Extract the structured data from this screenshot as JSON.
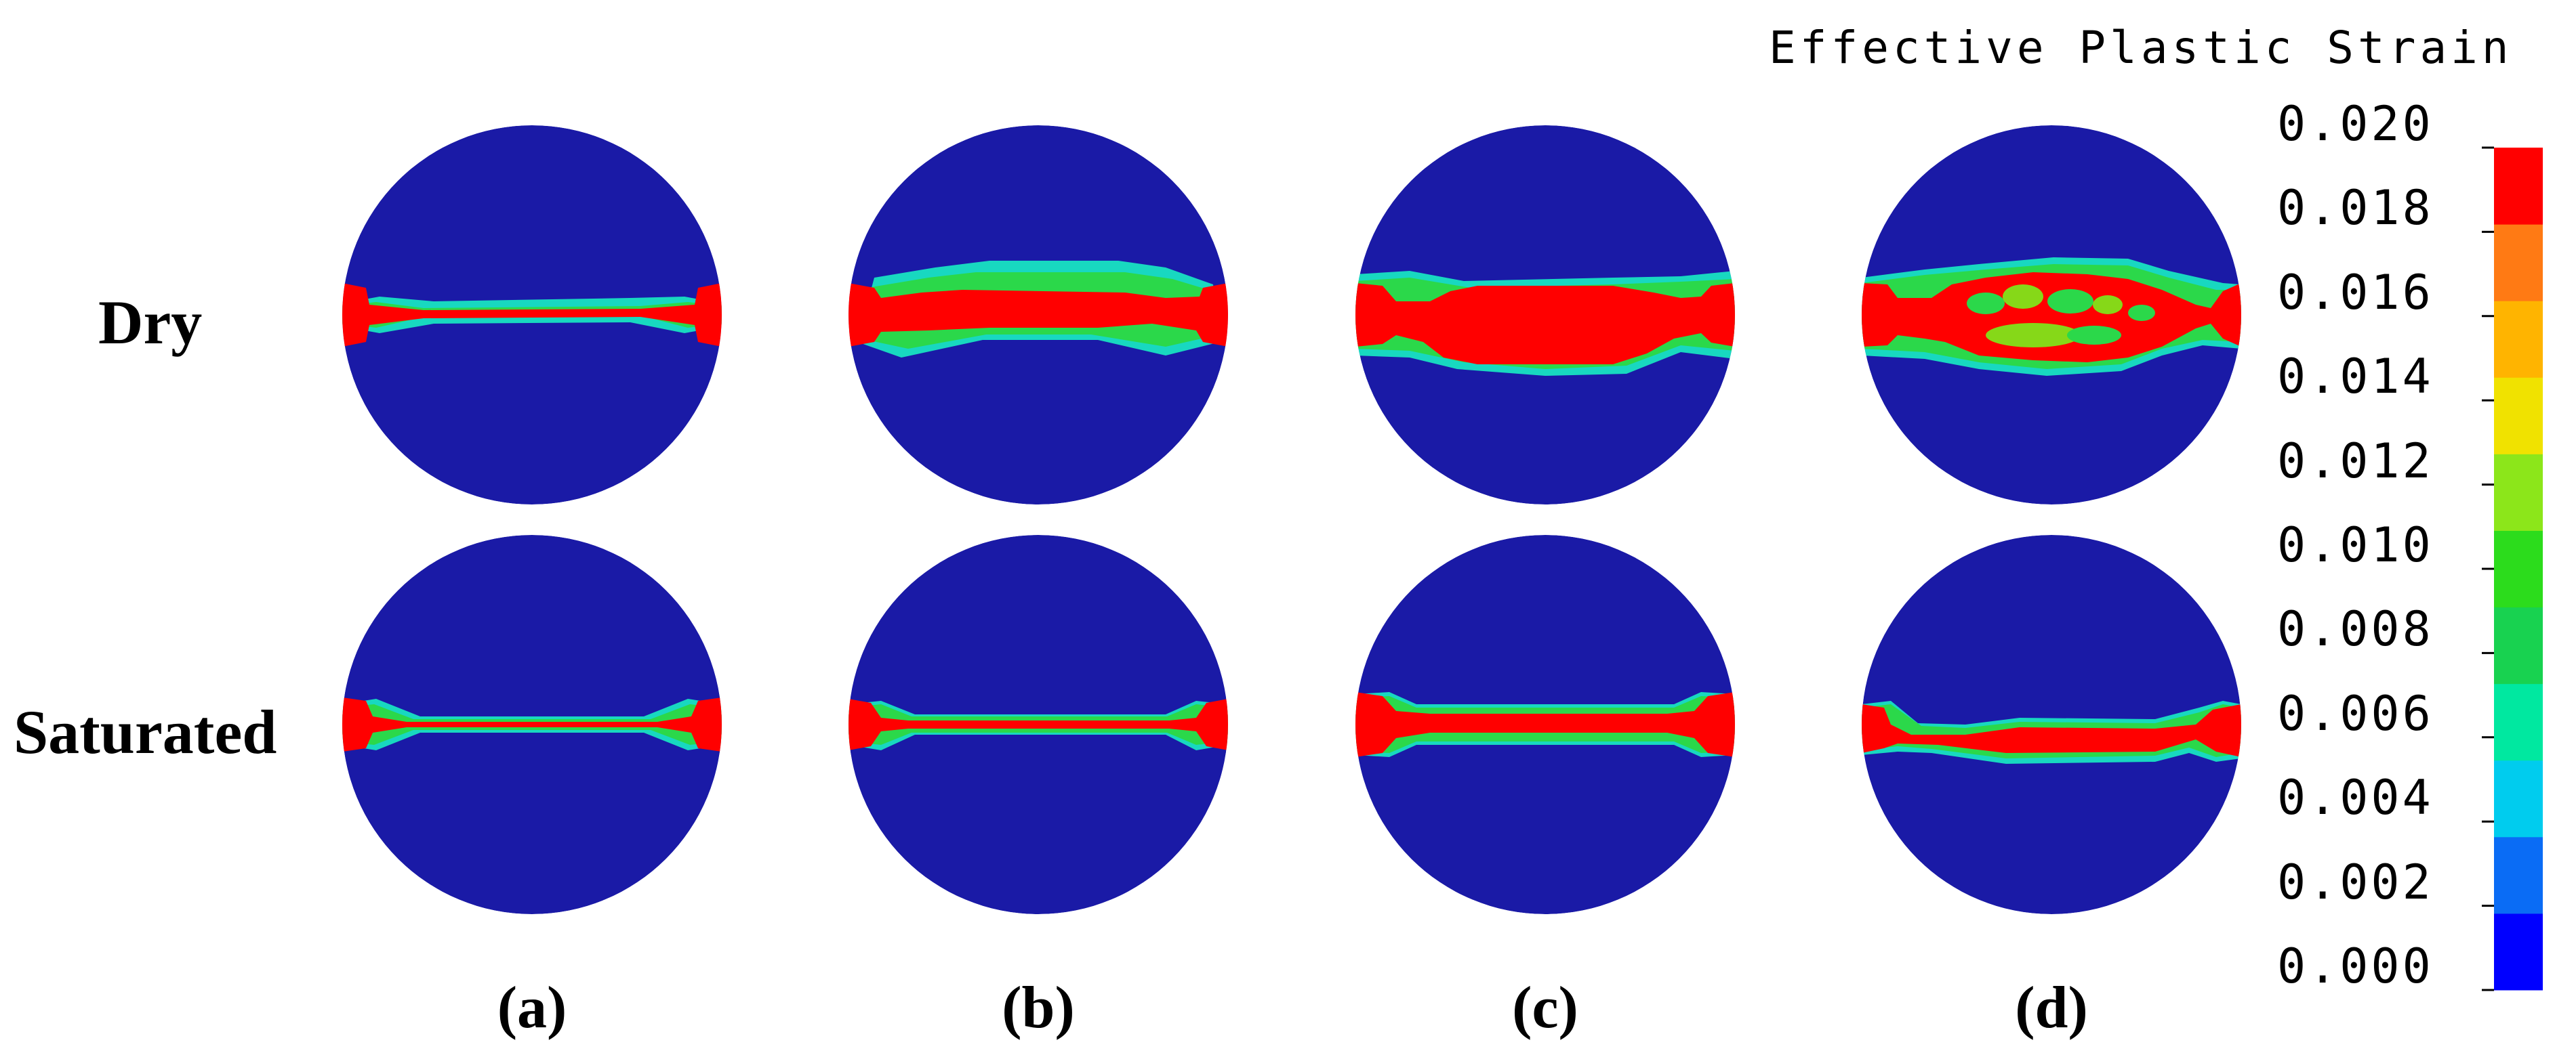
{
  "legend": {
    "title": "Effective Plastic Strain",
    "ticks": [
      "0.000",
      "0.002",
      "0.004",
      "0.006",
      "0.008",
      "0.010",
      "0.012",
      "0.014",
      "0.016",
      "0.018",
      "0.020"
    ],
    "colors": [
      "#0000ff",
      "#0a6cf5",
      "#00ccee",
      "#00e8a0",
      "#18d250",
      "#2cdc1c",
      "#8ce61a",
      "#f0e200",
      "#ffb400",
      "#ff7a14",
      "#ff0000"
    ]
  },
  "rows": [
    {
      "label": "Dry"
    },
    {
      "label": "Saturated"
    }
  ],
  "columns": [
    {
      "label": "(a)"
    },
    {
      "label": "(b)"
    },
    {
      "label": "(c)"
    },
    {
      "label": "(d)"
    }
  ],
  "colors": {
    "disc": "#1a1aa6",
    "band_red": "#ff0000",
    "band_green": "#2bd84a",
    "band_cyan": "#18d8c0",
    "band_lime": "#86d818"
  }
}
